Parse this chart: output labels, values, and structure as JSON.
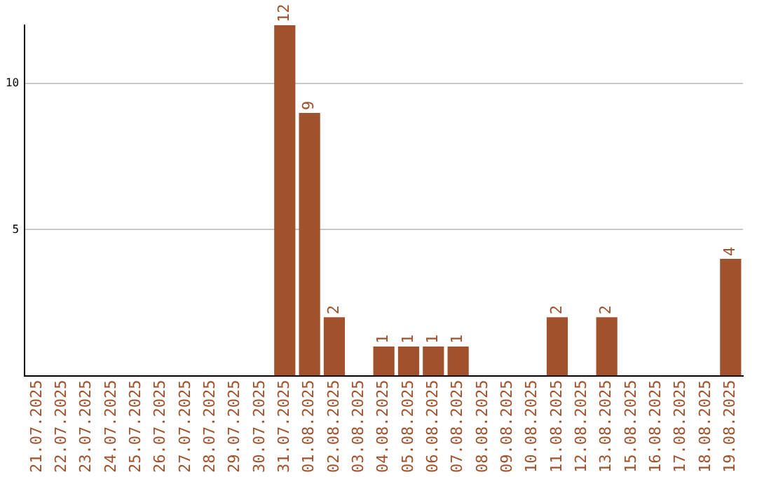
{
  "chart_data": {
    "type": "bar",
    "categories": [
      "21.07.2025",
      "22.07.2025",
      "23.07.2025",
      "24.07.2025",
      "25.07.2025",
      "26.07.2025",
      "27.07.2025",
      "28.07.2025",
      "29.07.2025",
      "30.07.2025",
      "31.07.2025",
      "01.08.2025",
      "02.08.2025",
      "03.08.2025",
      "04.08.2025",
      "05.08.2025",
      "06.08.2025",
      "07.08.2025",
      "08.08.2025",
      "09.08.2025",
      "10.08.2025",
      "11.08.2025",
      "12.08.2025",
      "13.08.2025",
      "15.08.2025",
      "16.08.2025",
      "17.08.2025",
      "18.08.2025",
      "19.08.2025"
    ],
    "values": [
      0,
      0,
      0,
      0,
      0,
      0,
      0,
      0,
      0,
      0,
      12,
      9,
      2,
      0,
      1,
      1,
      1,
      1,
      0,
      0,
      0,
      2,
      0,
      2,
      0,
      0,
      0,
      0,
      4
    ],
    "value_labels": [
      null,
      null,
      null,
      null,
      null,
      null,
      null,
      null,
      null,
      null,
      "12",
      "9",
      "2",
      null,
      "1",
      "1",
      "1",
      "1",
      null,
      null,
      null,
      "2",
      null,
      "2",
      null,
      null,
      null,
      null,
      "4"
    ],
    "color": "#a0522d",
    "ylim": [
      0,
      12
    ],
    "yticks": [
      5,
      10
    ],
    "grid": "y",
    "legend": false
  }
}
